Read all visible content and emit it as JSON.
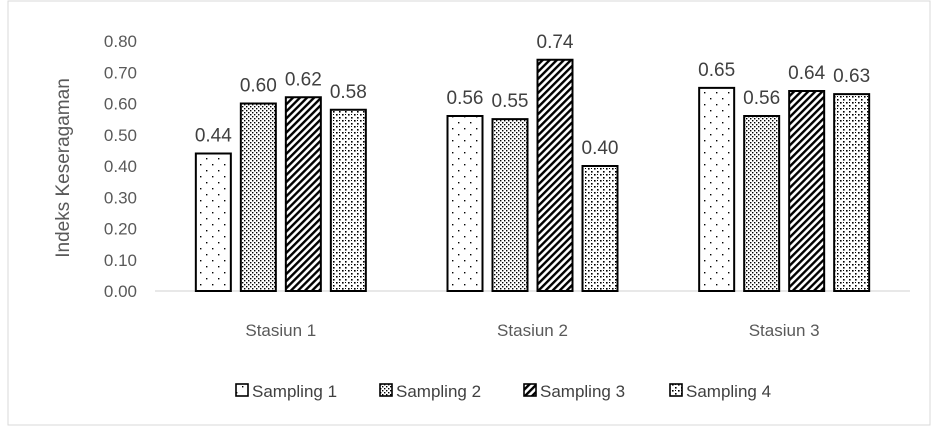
{
  "chart_data": {
    "type": "bar",
    "title": "",
    "xlabel": "",
    "ylabel": "Indeks Keseragaman",
    "ylim": [
      0,
      0.8
    ],
    "ytick_step": 0.1,
    "yticks": [
      "0.00",
      "0.10",
      "0.20",
      "0.30",
      "0.40",
      "0.50",
      "0.60",
      "0.70",
      "0.80"
    ],
    "grid": false,
    "legend_position": "bottom",
    "categories": [
      "Stasiun 1",
      "Stasiun 2",
      "Stasiun 3"
    ],
    "series": [
      {
        "name": "Sampling 1",
        "pattern": "sparse-dots",
        "values": [
          0.44,
          0.56,
          0.65
        ],
        "labels": [
          "0.44",
          "0.56",
          "0.65"
        ]
      },
      {
        "name": "Sampling 2",
        "pattern": "dense-dots",
        "values": [
          0.6,
          0.55,
          0.56
        ],
        "labels": [
          "0.60",
          "0.55",
          "0.56"
        ]
      },
      {
        "name": "Sampling 3",
        "pattern": "diagonal-hatch",
        "values": [
          0.62,
          0.74,
          0.64
        ],
        "labels": [
          "0.62",
          "0.74",
          "0.64"
        ]
      },
      {
        "name": "Sampling 4",
        "pattern": "checker-dots",
        "values": [
          0.58,
          0.4,
          0.63
        ],
        "labels": [
          "0.58",
          "0.40",
          "0.63"
        ]
      }
    ],
    "colors": {
      "bar_stroke": "#000000",
      "axis": "#d9d9d9",
      "text": "#595959",
      "frame": "#d9d9d9"
    }
  }
}
